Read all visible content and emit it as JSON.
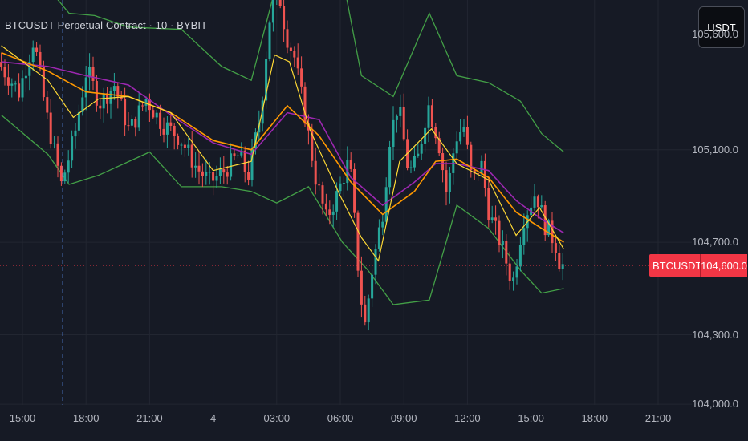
{
  "header": {
    "title": "BTCUSDT Perpetual Contract · 10 · BYBIT",
    "currency_button": "USDT"
  },
  "colors": {
    "background": "#161a25",
    "grid": "#222631",
    "up": "#26a69a",
    "down": "#ef5350",
    "bb_band": "#43a047",
    "ma_purple": "#9c27b0",
    "ma_orange": "#ff9800",
    "ma_yellow": "#fdd835",
    "last_price": "#f23645",
    "crosshair_v": "#5b8ff2"
  },
  "chart_data": {
    "type": "candlestick",
    "title": "BTCUSDT Perpetual Contract · 10 · BYBIT",
    "interval": "10",
    "exchange": "BYBIT",
    "y_ticks": [
      "105,600.0",
      "105,100.0",
      "104,700.0",
      "104,300.0",
      "104,000.0"
    ],
    "y_tick_values": [
      105600,
      105100,
      104700,
      104300,
      104000
    ],
    "x_ticks": [
      "15:00",
      "18:00",
      "21:00",
      "4",
      "03:00",
      "06:00",
      "09:00",
      "12:00",
      "15:00",
      "18:00",
      "21:00"
    ],
    "x_tick_hours": [
      15,
      18,
      21,
      24,
      27,
      30,
      33,
      36,
      39,
      42,
      45
    ],
    "last_price": "104,600.0",
    "last_price_value": 104600,
    "symbol_label": "BTCUSDT.P",
    "crosshair_hour": 16.9,
    "price_anchors": [
      [
        14,
        105480
      ],
      [
        15,
        105350
      ],
      [
        15.7,
        105580
      ],
      [
        16.3,
        105250
      ],
      [
        17.0,
        104950
      ],
      [
        17.6,
        105150
      ],
      [
        18.2,
        105450
      ],
      [
        18.8,
        105300
      ],
      [
        19.5,
        105380
      ],
      [
        20.2,
        105180
      ],
      [
        21.0,
        105320
      ],
      [
        21.7,
        105220
      ],
      [
        22.6,
        105150
      ],
      [
        23.4,
        105020
      ],
      [
        24.0,
        104960
      ],
      [
        24.6,
        105000
      ],
      [
        25.4,
        105080
      ],
      [
        25.8,
        104980
      ],
      [
        26.4,
        105250
      ],
      [
        26.8,
        105650
      ],
      [
        27.2,
        105820
      ],
      [
        27.6,
        105600
      ],
      [
        28.0,
        105500
      ],
      [
        28.6,
        105200
      ],
      [
        29.0,
        104980
      ],
      [
        29.5,
        104800
      ],
      [
        30.0,
        104900
      ],
      [
        30.6,
        105060
      ],
      [
        31.0,
        104600
      ],
      [
        31.3,
        104320
      ],
      [
        31.7,
        104600
      ],
      [
        32.2,
        104850
      ],
      [
        32.5,
        105150
      ],
      [
        32.9,
        105300
      ],
      [
        33.4,
        105000
      ],
      [
        33.8,
        105050
      ],
      [
        34.3,
        105300
      ],
      [
        34.8,
        105140
      ],
      [
        35.2,
        104900
      ],
      [
        35.6,
        105150
      ],
      [
        36.0,
        105200
      ],
      [
        36.4,
        104950
      ],
      [
        36.8,
        105050
      ],
      [
        37.2,
        104820
      ],
      [
        37.8,
        104680
      ],
      [
        38.3,
        104520
      ],
      [
        38.8,
        104800
      ],
      [
        39.4,
        104920
      ],
      [
        39.8,
        104780
      ],
      [
        40.3,
        104700
      ],
      [
        40.55,
        104600
      ]
    ],
    "bands": {
      "upper": [
        [
          14,
          105750
        ],
        [
          16.2,
          105800
        ],
        [
          17.2,
          105690
        ],
        [
          18.4,
          105680
        ],
        [
          20.0,
          105630
        ],
        [
          22.5,
          105620
        ],
        [
          24.4,
          105460
        ],
        [
          25.8,
          105400
        ],
        [
          27.0,
          105820
        ],
        [
          29.0,
          106130
        ],
        [
          30.1,
          105850
        ],
        [
          31.0,
          105420
        ],
        [
          32.5,
          105330
        ],
        [
          34.2,
          105690
        ],
        [
          35.5,
          105420
        ],
        [
          37.0,
          105390
        ],
        [
          38.5,
          105310
        ],
        [
          39.5,
          105170
        ],
        [
          40.55,
          105090
        ]
      ],
      "lower": [
        [
          14,
          105250
        ],
        [
          16.2,
          105080
        ],
        [
          17.2,
          104950
        ],
        [
          18.6,
          104990
        ],
        [
          21.0,
          105090
        ],
        [
          22.5,
          104940
        ],
        [
          24.4,
          104940
        ],
        [
          25.8,
          104920
        ],
        [
          27.0,
          104870
        ],
        [
          28.5,
          104940
        ],
        [
          30.1,
          104700
        ],
        [
          31.3,
          104580
        ],
        [
          32.5,
          104430
        ],
        [
          34.2,
          104450
        ],
        [
          35.5,
          104860
        ],
        [
          37.0,
          104760
        ],
        [
          38.5,
          104580
        ],
        [
          39.5,
          104480
        ],
        [
          40.55,
          104500
        ]
      ],
      "ma_purple": [
        [
          14,
          105480
        ],
        [
          16.2,
          105460
        ],
        [
          18.0,
          105420
        ],
        [
          20.0,
          105380
        ],
        [
          22.0,
          105250
        ],
        [
          24.0,
          105130
        ],
        [
          25.8,
          105080
        ],
        [
          27.5,
          105260
        ],
        [
          29.0,
          105230
        ],
        [
          30.5,
          104980
        ],
        [
          32.0,
          104860
        ],
        [
          33.5,
          104960
        ],
        [
          34.5,
          105040
        ],
        [
          35.5,
          105040
        ],
        [
          37.0,
          105010
        ],
        [
          38.3,
          104880
        ],
        [
          39.5,
          104800
        ],
        [
          40.55,
          104740
        ]
      ],
      "ma_orange": [
        [
          14,
          105520
        ],
        [
          16.2,
          105440
        ],
        [
          18.0,
          105350
        ],
        [
          20.0,
          105330
        ],
        [
          22.0,
          105260
        ],
        [
          24.0,
          105140
        ],
        [
          25.8,
          105100
        ],
        [
          27.5,
          105290
        ],
        [
          29.0,
          105160
        ],
        [
          30.5,
          104960
        ],
        [
          32.0,
          104820
        ],
        [
          33.5,
          104920
        ],
        [
          34.5,
          105050
        ],
        [
          35.5,
          105060
        ],
        [
          37.0,
          104980
        ],
        [
          38.3,
          104830
        ],
        [
          39.5,
          104760
        ],
        [
          40.55,
          104700
        ]
      ],
      "ma_yellow": [
        [
          14,
          105550
        ],
        [
          16.2,
          105400
        ],
        [
          17.4,
          105240
        ],
        [
          18.6,
          105320
        ],
        [
          20.0,
          105330
        ],
        [
          22.0,
          105260
        ],
        [
          24.0,
          105010
        ],
        [
          25.8,
          105050
        ],
        [
          26.9,
          105510
        ],
        [
          27.6,
          105480
        ],
        [
          28.6,
          105180
        ],
        [
          30.0,
          104900
        ],
        [
          31.0,
          104720
        ],
        [
          31.8,
          104620
        ],
        [
          32.8,
          105050
        ],
        [
          34.3,
          105190
        ],
        [
          35.5,
          105040
        ],
        [
          37.0,
          104970
        ],
        [
          38.3,
          104730
        ],
        [
          39.4,
          104850
        ],
        [
          40.55,
          104670
        ]
      ]
    }
  }
}
